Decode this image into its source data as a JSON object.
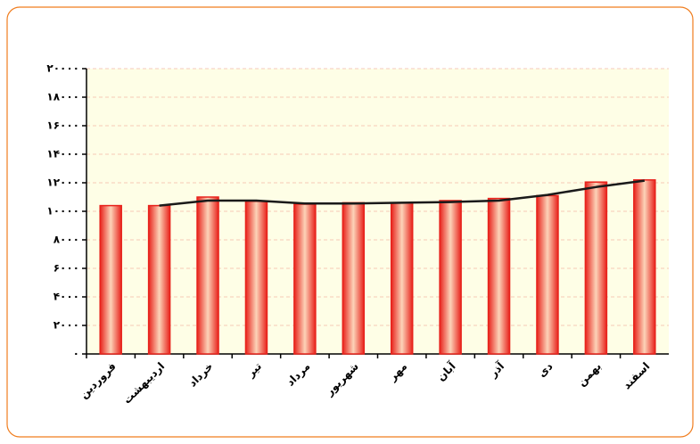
{
  "chart_data": {
    "type": "bar",
    "categories": [
      "فروردین",
      "اردیبهشت",
      "خرداد",
      "تیر",
      "مرداد",
      "شهریور",
      "مهر",
      "آبان",
      "آذر",
      "دی",
      "بهمن",
      "اسفند"
    ],
    "series": [
      {
        "type": "bar",
        "color": "#e8231c",
        "values": [
          10400,
          10400,
          11000,
          10700,
          10500,
          10600,
          10600,
          10750,
          10900,
          11100,
          12050,
          12200
        ]
      },
      {
        "type": "line",
        "color": "#1a1a1a",
        "values": [
          null,
          10400,
          10750,
          10750,
          10550,
          10550,
          10600,
          10650,
          10750,
          11150,
          11700,
          12150
        ]
      }
    ],
    "ylim": [
      0,
      20000
    ],
    "yticks": [
      {
        "value": 0,
        "label": "۰"
      },
      {
        "value": 2000,
        "label": "۲۰۰۰"
      },
      {
        "value": 4000,
        "label": "۴۰۰۰"
      },
      {
        "value": 6000,
        "label": "۶۰۰۰"
      },
      {
        "value": 8000,
        "label": "۸۰۰۰"
      },
      {
        "value": 10000,
        "label": "۱۰۰۰۰"
      },
      {
        "value": 12000,
        "label": "۱۲۰۰۰"
      },
      {
        "value": 14000,
        "label": "۱۴۰۰۰"
      },
      {
        "value": 16000,
        "label": "۱۶۰۰۰"
      },
      {
        "value": 18000,
        "label": "۱۸۰۰۰"
      },
      {
        "value": 20000,
        "label": "۲۰۰۰۰"
      }
    ],
    "grid": true
  }
}
